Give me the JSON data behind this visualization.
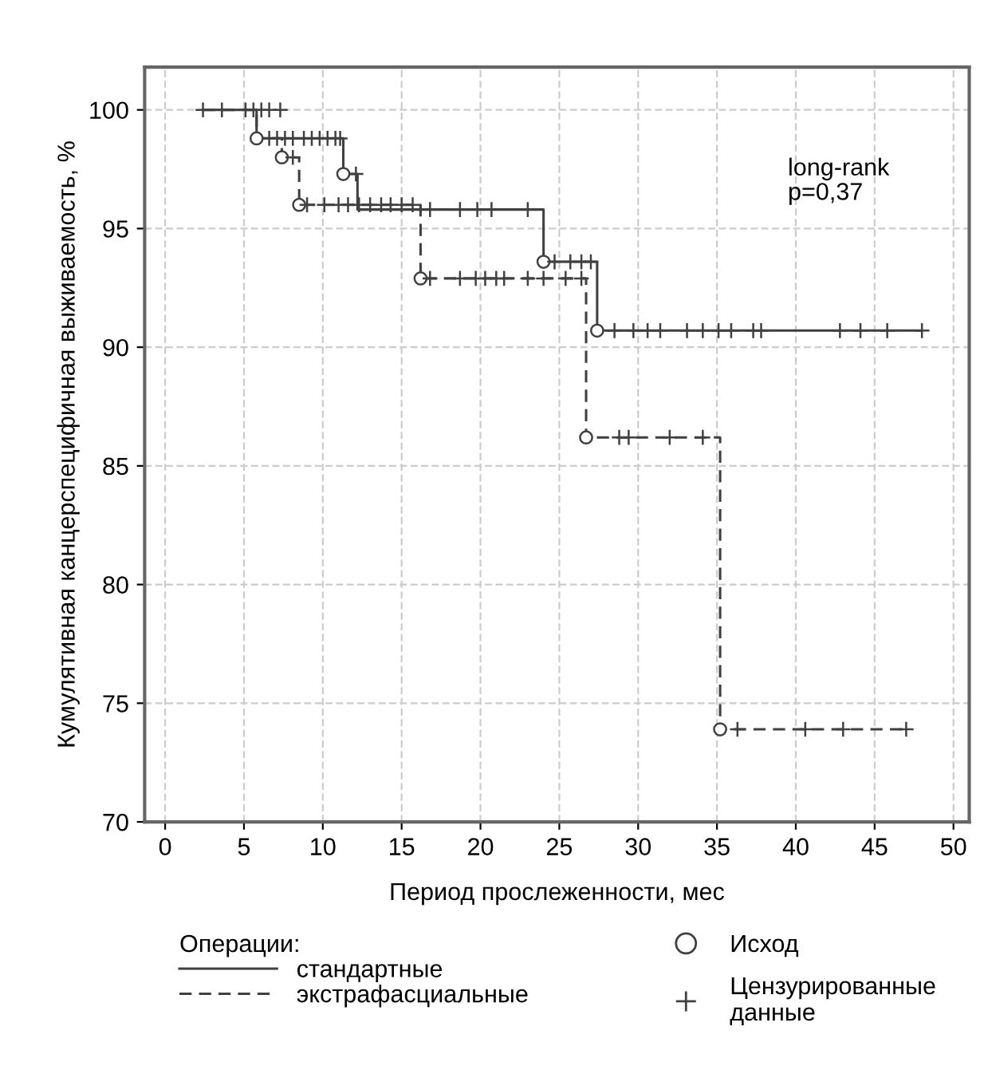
{
  "chart_data": {
    "type": "step",
    "xlabel": "Период прослеженности, мес",
    "ylabel": "Кумулятивная канцерспецифичная выживаемость, %",
    "legend_title": "Операции:",
    "annotations": [
      "long-rank\np=0,37"
    ],
    "xlim": [
      -1.3,
      51
    ],
    "ylim": [
      70,
      101.8
    ],
    "xticks": [
      0,
      5,
      10,
      15,
      20,
      25,
      30,
      35,
      40,
      45,
      50
    ],
    "yticks": [
      70,
      75,
      80,
      85,
      90,
      95,
      100
    ],
    "grid": true,
    "legend": "bottom",
    "series": [
      {
        "name": "стандартные",
        "color": "#404040",
        "line_style": "solid",
        "x": [
          2.4,
          5.8,
          11.3,
          12.2,
          24.0,
          27.4,
          48.0
        ],
        "values": [
          100,
          98.8,
          97.3,
          95.8,
          93.6,
          90.7,
          90.7
        ]
      },
      {
        "name": "экстрафасциальные",
        "color": "#404040",
        "line_style": "dashed",
        "x": [
          2.4,
          5.8,
          7.4,
          8.5,
          16.2,
          26.7,
          35.2,
          47.0
        ],
        "values": [
          100,
          98.8,
          98.0,
          96.0,
          92.9,
          86.2,
          73.9,
          73.9
        ]
      },
      {
        "name": "Исход",
        "type": "scatter",
        "color": "#404040",
        "marker": "circle",
        "x": [
          5.8,
          7.4,
          8.5,
          11.3,
          16.2,
          24.0,
          27.4,
          26.7,
          35.2
        ],
        "values": [
          98.8,
          98.0,
          96.0,
          97.3,
          92.9,
          93.6,
          90.7,
          86.2,
          73.9
        ]
      },
      {
        "name": "Цензурированные данные",
        "type": "scatter",
        "color": "#404040",
        "marker": "cross",
        "x": [
          2.4,
          3.6,
          5.1,
          5.6,
          6.1,
          6.6,
          7.3,
          6.6,
          7.1,
          7.6,
          8.1,
          8.8,
          9.3,
          9.8,
          10.3,
          10.8,
          11.1,
          8.1,
          12.1,
          9.0,
          10.1,
          11.0,
          11.6,
          12.3,
          13.0,
          13.7,
          14.3,
          15.0,
          15.7,
          16.8,
          18.7,
          19.8,
          20.7,
          23.0,
          24.7,
          25.7,
          26.4,
          27.0,
          16.8,
          18.7,
          19.7,
          20.3,
          21.0,
          21.5,
          23.0,
          24.0,
          25.4,
          26.4,
          28.5,
          29.7,
          30.6,
          31.4,
          33.1,
          34.1,
          35.1,
          35.9,
          37.3,
          37.8,
          42.8,
          44.1,
          45.8,
          48.0,
          28.8,
          29.4,
          32.0,
          34.1,
          36.3,
          40.6,
          43.0,
          47.0
        ],
        "values": [
          100,
          100,
          100,
          100,
          100,
          100,
          100,
          98.8,
          98.8,
          98.8,
          98.8,
          98.8,
          98.8,
          98.8,
          98.8,
          98.8,
          98.8,
          98.0,
          97.3,
          96.0,
          96.0,
          96.0,
          96.0,
          96.0,
          96.0,
          96.0,
          96.0,
          96.0,
          96.0,
          95.8,
          95.8,
          95.8,
          95.8,
          95.8,
          93.6,
          93.6,
          93.6,
          93.6,
          92.9,
          92.9,
          92.9,
          92.9,
          92.9,
          92.9,
          92.9,
          92.9,
          92.9,
          92.9,
          90.7,
          90.7,
          90.7,
          90.7,
          90.7,
          90.7,
          90.7,
          90.7,
          90.7,
          90.7,
          90.7,
          90.7,
          90.7,
          90.7,
          86.2,
          86.2,
          86.2,
          86.2,
          73.9,
          73.9,
          73.9,
          73.9
        ]
      }
    ]
  }
}
